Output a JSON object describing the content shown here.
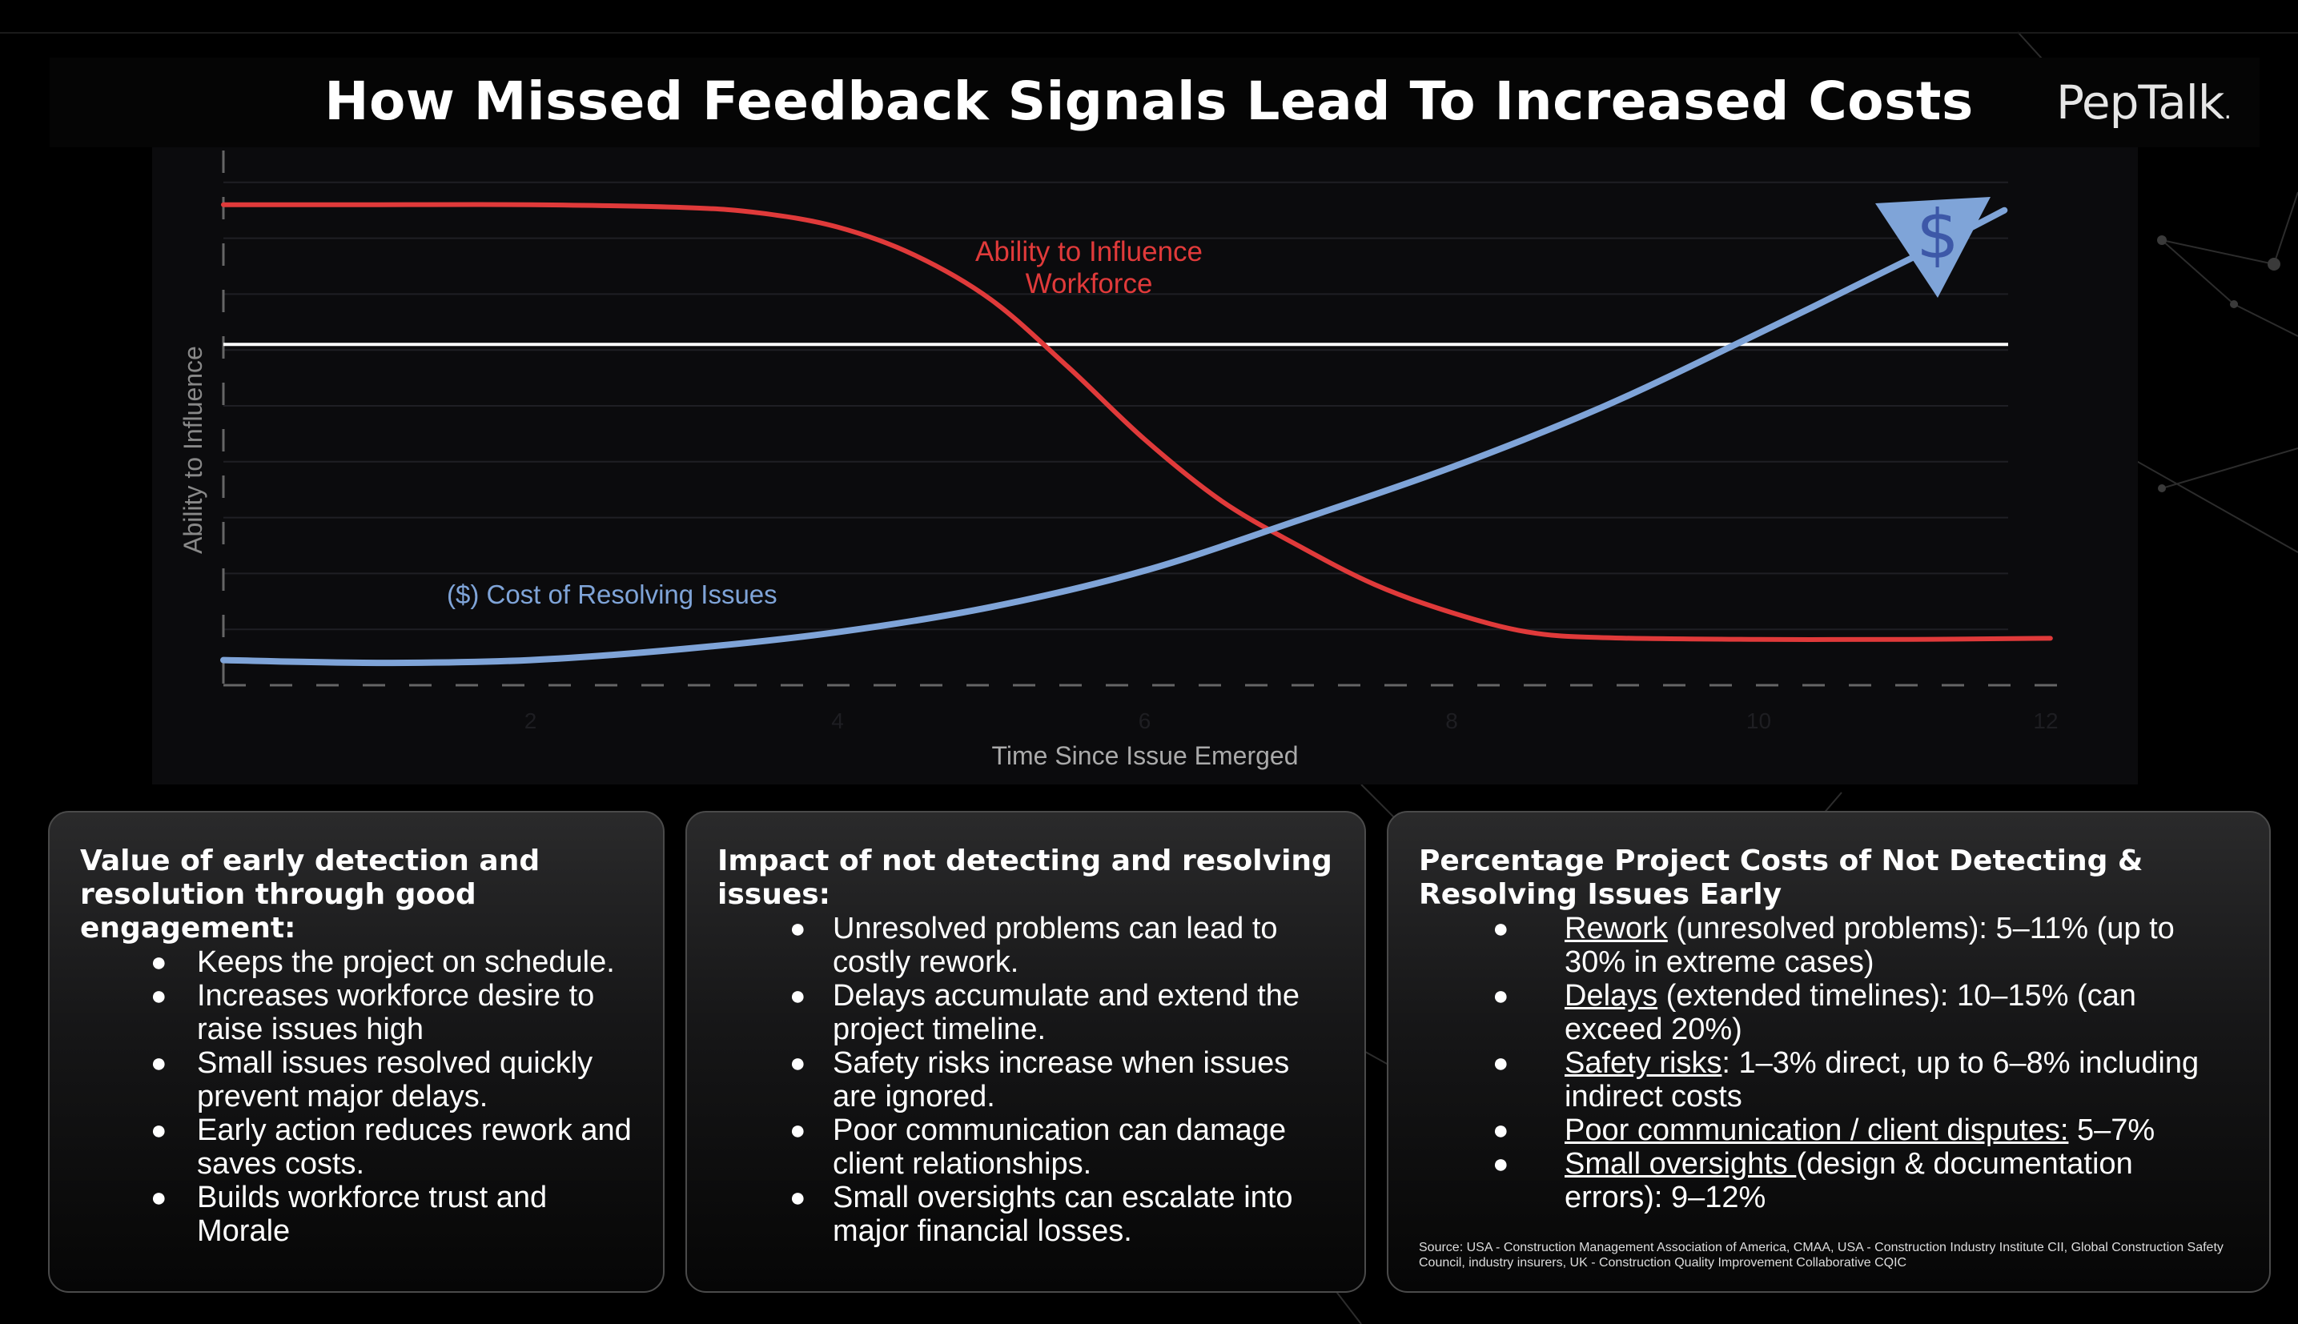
{
  "header": {
    "title": "How Missed Feedback Signals Lead To Increased Costs",
    "logo": "PepTalk",
    "logo_dot": "."
  },
  "chart_data": {
    "type": "line",
    "title": "How Missed Feedback Signals Lead To Increased Costs",
    "xlabel": "Time Since Issue Emerged",
    "ylabel": "Ability to Influence",
    "xlim": [
      0,
      12
    ],
    "ylim": [
      0,
      10
    ],
    "x_ticks": [
      "2",
      "4",
      "6",
      "8",
      "10",
      "12"
    ],
    "x_tick_values": [
      2,
      4,
      6,
      8,
      10,
      12
    ],
    "grid": true,
    "reference_line": {
      "y": 6.1,
      "color": "#ffffff"
    },
    "series": [
      {
        "name": "Ability to Influence Workforce",
        "label_lines": [
          "Ability to Influence",
          "Workforce"
        ],
        "color": "#e03a3a",
        "x": [
          0,
          1,
          2,
          3,
          3.5,
          4,
          4.5,
          5,
          5.5,
          6,
          6.5,
          7,
          7.5,
          8,
          8.5,
          9,
          10,
          11,
          11.9
        ],
        "y": [
          8.6,
          8.6,
          8.6,
          8.55,
          8.45,
          8.2,
          7.7,
          6.9,
          5.7,
          4.4,
          3.3,
          2.5,
          1.8,
          1.3,
          0.95,
          0.85,
          0.82,
          0.82,
          0.84
        ]
      },
      {
        "name": "($) Cost of Resolving Issues",
        "label": "($) Cost of Resolving Issues",
        "color": "#7fa4d8",
        "x": [
          0,
          1,
          2,
          3,
          4,
          5,
          6,
          7,
          8,
          9,
          10,
          11,
          11.6
        ],
        "y": [
          0.45,
          0.4,
          0.45,
          0.65,
          0.95,
          1.4,
          2.05,
          2.95,
          3.9,
          5.0,
          6.3,
          7.65,
          8.5
        ]
      }
    ],
    "end_marker": {
      "symbol": "$",
      "color": "#7fa4d8"
    }
  },
  "cards": [
    {
      "title": "Value of early detection and resolution through good engagement:",
      "items": [
        "Keeps the project on schedule.",
        "Increases workforce desire to raise issues high",
        "Small issues resolved quickly prevent major delays.",
        "Early action reduces rework and saves costs.",
        "Builds workforce trust and Morale"
      ]
    },
    {
      "title": "Impact of not detecting and resolving issues:",
      "items": [
        "Unresolved problems can lead to costly rework.",
        "Delays accumulate and extend the project timeline.",
        "Safety risks increase when issues are ignored.",
        "Poor communication can damage client relationships.",
        "Small oversights can escalate into major financial losses."
      ]
    },
    {
      "title": "Percentage Project Costs of Not Detecting & Resolving Issues Early",
      "items": [
        {
          "term": "Rework",
          "rest": " (unresolved problems): 5–11% (up to 30% in extreme cases)"
        },
        {
          "term": "Delays",
          "rest": " (extended timelines): 10–15% (can exceed 20%)"
        },
        {
          "term": "Safety risks",
          "rest": ": 1–3% direct, up to 6–8% including indirect costs"
        },
        {
          "term": "Poor communication / client disputes:",
          "rest": " 5–7%"
        },
        {
          "term": "Small oversights ",
          "rest": "(design & documentation errors): 9–12%"
        }
      ],
      "source": "Source: USA - Construction Management Association of America, CMAA, USA - Construction Industry Institute CII, Global Construction Safety Council, industry insurers, UK - Construction Quality Improvement Collaborative CQIC"
    }
  ],
  "bullet_symbol": "●"
}
